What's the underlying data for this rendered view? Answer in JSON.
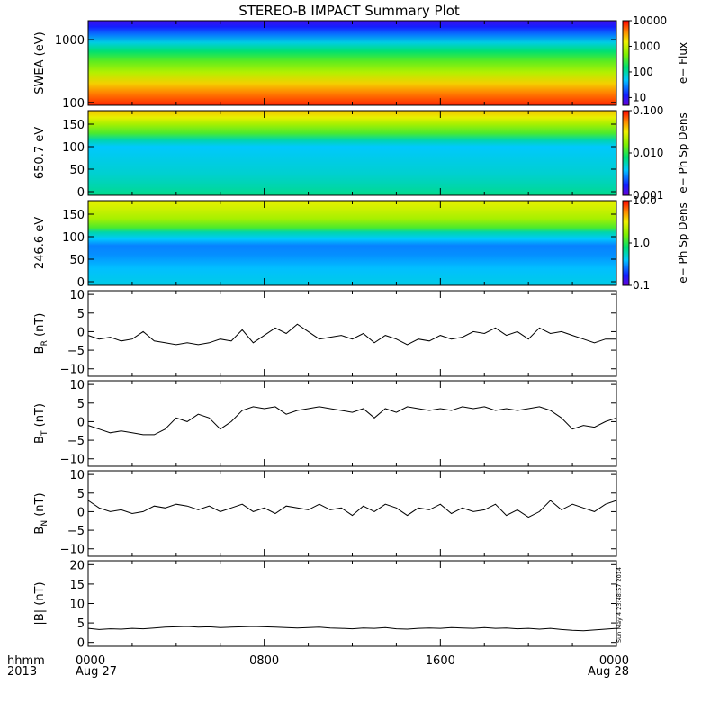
{
  "page": {
    "title": "STEREO-B IMPACT Summary Plot",
    "footer": {
      "row1_label": "hhmm",
      "row2_label": "2013",
      "x_ticks": [
        "0000",
        "0800",
        "1600",
        "0000"
      ],
      "dates": [
        "Aug 27",
        "",
        "",
        "Aug 28"
      ]
    },
    "stamp": "Sun May  4 23:48:57 2014"
  },
  "chart_data": [
    {
      "type": "heatmap",
      "id": "swea",
      "ylabel": "SWEA (eV)",
      "y_scale": "log",
      "ylim": [
        90,
        2000
      ],
      "y_ticks": [
        100,
        1000
      ],
      "y_tick_labels": [
        "100",
        "1000"
      ],
      "colorbar": {
        "label": "e− Flux",
        "scale": "log",
        "range": [
          5,
          10000
        ],
        "ticks": [
          10,
          100,
          1000,
          10000
        ],
        "tick_labels": [
          "10",
          "100",
          "1000",
          "10000"
        ]
      },
      "bands": [
        {
          "y": 2000,
          "value": 8
        },
        {
          "y": 1600,
          "value": 12
        },
        {
          "y": 1200,
          "value": 25
        },
        {
          "y": 900,
          "value": 60
        },
        {
          "y": 650,
          "value": 150
        },
        {
          "y": 450,
          "value": 350
        },
        {
          "y": 300,
          "value": 800
        },
        {
          "y": 200,
          "value": 2000
        },
        {
          "y": 140,
          "value": 4000
        },
        {
          "y": 100,
          "value": 6500
        },
        {
          "y": 90,
          "value": 7500
        }
      ]
    },
    {
      "type": "heatmap",
      "id": "pad650",
      "ylabel": "650.7 eV",
      "y_scale": "linear",
      "ylim": [
        -8,
        180
      ],
      "y_ticks": [
        0,
        50,
        100,
        150
      ],
      "y_tick_labels": [
        "0",
        "50",
        "100",
        "150"
      ],
      "colorbar": {
        "label": "e− Ph Sp Dens",
        "scale": "log",
        "range": [
          0.001,
          0.1
        ],
        "ticks": [
          0.001,
          0.01,
          0.1
        ],
        "tick_labels": [
          "0.001",
          "0.010",
          "0.100"
        ]
      },
      "bands": [
        {
          "y": 180,
          "value": 0.04
        },
        {
          "y": 165,
          "value": 0.03
        },
        {
          "y": 150,
          "value": 0.02
        },
        {
          "y": 130,
          "value": 0.012
        },
        {
          "y": 115,
          "value": 0.006
        },
        {
          "y": 100,
          "value": 0.004
        },
        {
          "y": 70,
          "value": 0.0045
        },
        {
          "y": 40,
          "value": 0.005
        },
        {
          "y": 10,
          "value": 0.006
        },
        {
          "y": -8,
          "value": 0.007
        }
      ]
    },
    {
      "type": "heatmap",
      "id": "pad246",
      "ylabel": "246.6 eV",
      "y_scale": "linear",
      "ylim": [
        -8,
        180
      ],
      "y_ticks": [
        0,
        50,
        100,
        150
      ],
      "y_tick_labels": [
        "0",
        "50",
        "100",
        "150"
      ],
      "colorbar": {
        "label": "e− Ph Sp Dens",
        "scale": "log",
        "range": [
          0.1,
          10
        ],
        "ticks": [
          0.1,
          1,
          10
        ],
        "tick_labels": [
          "0.1",
          "1.0",
          "10.0"
        ]
      },
      "bands": [
        {
          "y": 180,
          "value": 3.0
        },
        {
          "y": 160,
          "value": 2.5
        },
        {
          "y": 140,
          "value": 2.0
        },
        {
          "y": 120,
          "value": 1.2
        },
        {
          "y": 110,
          "value": 0.6
        },
        {
          "y": 95,
          "value": 0.4
        },
        {
          "y": 80,
          "value": 0.28
        },
        {
          "y": 60,
          "value": 0.3
        },
        {
          "y": 30,
          "value": 0.38
        },
        {
          "y": -8,
          "value": 0.45
        }
      ]
    },
    {
      "type": "line",
      "id": "br",
      "ylabel": "B_R (nT)",
      "ylabel_main": "B",
      "ylabel_sub": "R",
      "ylabel_unit": " (nT)",
      "ylim": [
        -12,
        11
      ],
      "y_ticks": [
        -10,
        -5,
        0,
        5,
        10
      ],
      "y_tick_labels": [
        "−10",
        "−5",
        "0",
        "5",
        "10"
      ],
      "x": [
        0,
        0.5,
        1,
        1.5,
        2,
        2.5,
        3,
        3.5,
        4,
        4.5,
        5,
        5.5,
        6,
        6.5,
        7,
        7.5,
        8,
        8.5,
        9,
        9.5,
        10,
        10.5,
        11,
        11.5,
        12,
        12.5,
        13,
        13.5,
        14,
        14.5,
        15,
        15.5,
        16,
        16.5,
        17,
        17.5,
        18,
        18.5,
        19,
        19.5,
        20,
        20.5,
        21,
        21.5,
        22,
        22.5,
        23,
        23.5,
        24
      ],
      "values": [
        -1,
        -2,
        -1.5,
        -2.5,
        -2,
        0,
        -2.5,
        -3,
        -3.5,
        -3,
        -3.5,
        -3,
        -2,
        -2.5,
        0.5,
        -3,
        -1,
        1,
        -0.5,
        2,
        0,
        -2,
        -1.5,
        -1,
        -2,
        -0.5,
        -3,
        -1,
        -2,
        -3.5,
        -2,
        -2.5,
        -1,
        -2,
        -1.5,
        0,
        -0.5,
        1,
        -1,
        0,
        -2,
        1,
        -0.5,
        0,
        -1,
        -2,
        -3,
        -2,
        -2
      ]
    },
    {
      "type": "line",
      "id": "bt",
      "ylabel": "B_T (nT)",
      "ylabel_main": "B",
      "ylabel_sub": "T",
      "ylabel_unit": " (nT)",
      "ylim": [
        -12,
        11
      ],
      "y_ticks": [
        -10,
        -5,
        0,
        5,
        10
      ],
      "y_tick_labels": [
        "−10",
        "−5",
        "0",
        "5",
        "10"
      ],
      "x": [
        0,
        0.5,
        1,
        1.5,
        2,
        2.5,
        3,
        3.5,
        4,
        4.5,
        5,
        5.5,
        6,
        6.5,
        7,
        7.5,
        8,
        8.5,
        9,
        9.5,
        10,
        10.5,
        11,
        11.5,
        12,
        12.5,
        13,
        13.5,
        14,
        14.5,
        15,
        15.5,
        16,
        16.5,
        17,
        17.5,
        18,
        18.5,
        19,
        19.5,
        20,
        20.5,
        21,
        21.5,
        22,
        22.5,
        23,
        23.5,
        24
      ],
      "values": [
        -1,
        -2,
        -3,
        -2.5,
        -3,
        -3.5,
        -3.5,
        -2,
        1,
        0,
        2,
        1,
        -2,
        0,
        3,
        4,
        3.5,
        4,
        2,
        3,
        3.5,
        4,
        3.5,
        3,
        2.5,
        3.5,
        1,
        3.5,
        2.5,
        4,
        3.5,
        3,
        3.5,
        3,
        4,
        3.5,
        4,
        3,
        3.5,
        3,
        3.5,
        4,
        3,
        1,
        -2,
        -1,
        -1.5,
        0,
        1
      ]
    },
    {
      "type": "line",
      "id": "bn",
      "ylabel": "B_N (nT)",
      "ylabel_main": "B",
      "ylabel_sub": "N",
      "ylabel_unit": " (nT)",
      "ylim": [
        -12,
        11
      ],
      "y_ticks": [
        -10,
        -5,
        0,
        5,
        10
      ],
      "y_tick_labels": [
        "−10",
        "−5",
        "0",
        "5",
        "10"
      ],
      "x": [
        0,
        0.5,
        1,
        1.5,
        2,
        2.5,
        3,
        3.5,
        4,
        4.5,
        5,
        5.5,
        6,
        6.5,
        7,
        7.5,
        8,
        8.5,
        9,
        9.5,
        10,
        10.5,
        11,
        11.5,
        12,
        12.5,
        13,
        13.5,
        14,
        14.5,
        15,
        15.5,
        16,
        16.5,
        17,
        17.5,
        18,
        18.5,
        19,
        19.5,
        20,
        20.5,
        21,
        21.5,
        22,
        22.5,
        23,
        23.5,
        24
      ],
      "values": [
        3,
        1,
        0,
        0.5,
        -0.5,
        0,
        1.5,
        1,
        2,
        1.5,
        0.5,
        1.5,
        0,
        1,
        2,
        0,
        1,
        -0.5,
        1.5,
        1,
        0.5,
        2,
        0.5,
        1,
        -1,
        1.5,
        0,
        2,
        1,
        -1,
        1,
        0.5,
        2,
        -0.5,
        1,
        0,
        0.5,
        2,
        -1,
        0.5,
        -1.5,
        0,
        3,
        0.5,
        2,
        1,
        0,
        2,
        3
      ]
    },
    {
      "type": "line",
      "id": "bmag",
      "ylabel": "|B| (nT)",
      "ylim": [
        -1,
        21
      ],
      "y_ticks": [
        0,
        5,
        10,
        15,
        20
      ],
      "y_tick_labels": [
        "0",
        "5",
        "10",
        "15",
        "20"
      ],
      "x": [
        0,
        0.5,
        1,
        1.5,
        2,
        2.5,
        3,
        3.5,
        4,
        4.5,
        5,
        5.5,
        6,
        6.5,
        7,
        7.5,
        8,
        8.5,
        9,
        9.5,
        10,
        10.5,
        11,
        11.5,
        12,
        12.5,
        13,
        13.5,
        14,
        14.5,
        15,
        15.5,
        16,
        16.5,
        17,
        17.5,
        18,
        18.5,
        19,
        19.5,
        20,
        20.5,
        21,
        21.5,
        22,
        22.5,
        23,
        23.5,
        24
      ],
      "values": [
        3.6,
        3.3,
        3.5,
        3.4,
        3.6,
        3.5,
        3.7,
        3.9,
        4.0,
        4.1,
        3.9,
        4.0,
        3.8,
        3.9,
        4.0,
        4.1,
        4.0,
        3.9,
        3.8,
        3.7,
        3.8,
        3.9,
        3.7,
        3.6,
        3.5,
        3.7,
        3.6,
        3.8,
        3.5,
        3.4,
        3.6,
        3.7,
        3.6,
        3.8,
        3.7,
        3.6,
        3.8,
        3.6,
        3.7,
        3.5,
        3.6,
        3.4,
        3.6,
        3.3,
        3.1,
        3.0,
        3.2,
        3.4,
        3.6
      ]
    }
  ],
  "x_range": [
    0,
    24
  ]
}
